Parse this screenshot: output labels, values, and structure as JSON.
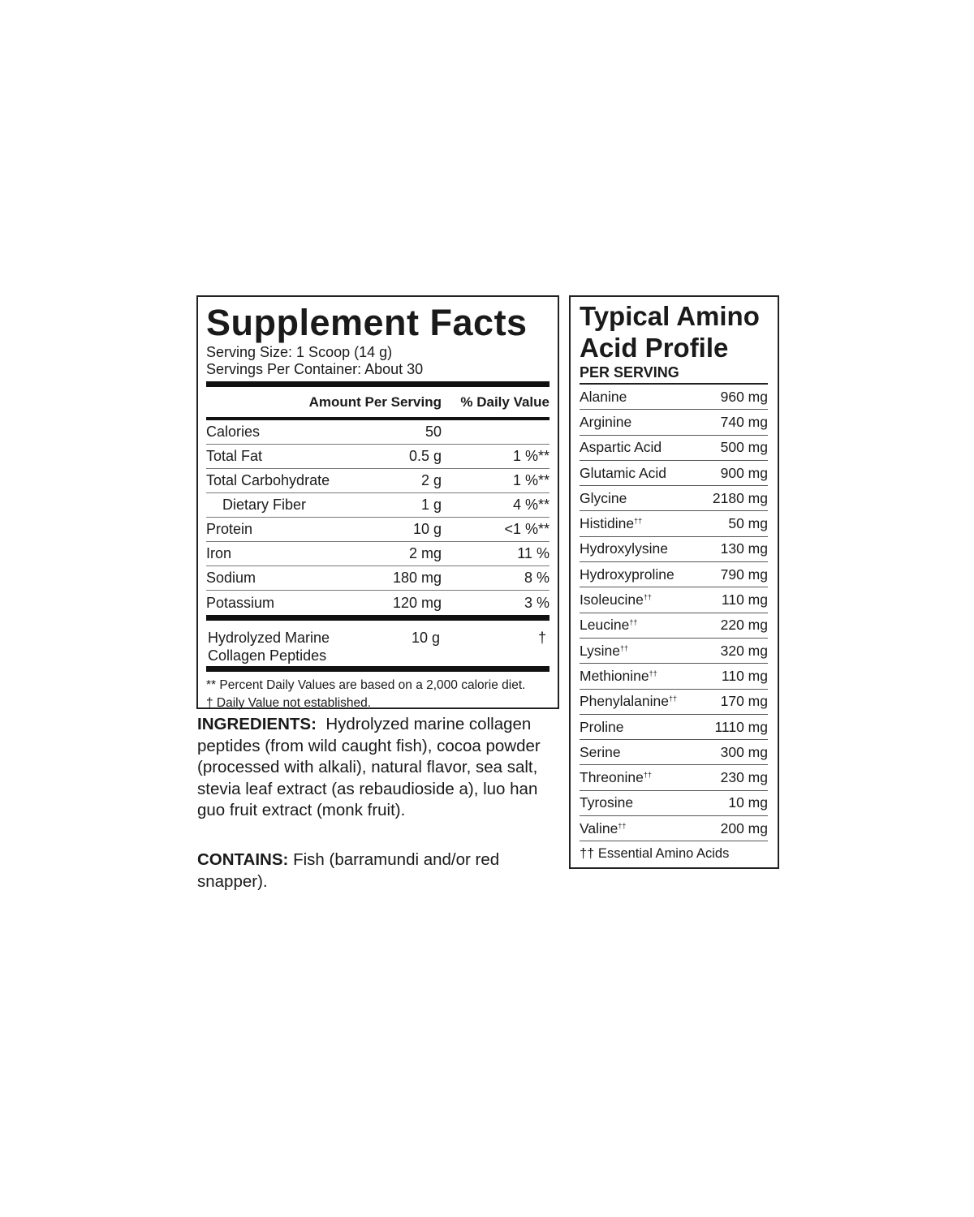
{
  "supplement_facts": {
    "title": "Supplement Facts",
    "serving_size": "Serving Size: 1 Scoop (14 g)",
    "servings_per_container": "Servings Per Container: About 30",
    "header_amount": "Amount Per Serving",
    "header_dv": "% Daily Value",
    "rows": [
      {
        "name": "Calories",
        "amount": "50",
        "dv": ""
      },
      {
        "name": "Total Fat",
        "amount": "0.5 g",
        "dv": "1 %**"
      },
      {
        "name": "Total Carbohydrate",
        "amount": "2 g",
        "dv": "1 %**"
      },
      {
        "name": "Dietary Fiber",
        "amount": "1 g",
        "dv": "4 %**"
      },
      {
        "name": "Protein",
        "amount": "10 g",
        "dv": "<1 %**"
      },
      {
        "name": "Iron",
        "amount": "2 mg",
        "dv": "11 %"
      },
      {
        "name": "Sodium",
        "amount": "180 mg",
        "dv": "8 %"
      },
      {
        "name": "Potassium",
        "amount": "120 mg",
        "dv": "3 %"
      }
    ],
    "collagen": {
      "name_line1": "Hydrolyzed Marine",
      "name_line2": "Collagen Peptides",
      "amount": "10 g",
      "dv": "†"
    },
    "footnote1": "** Percent Daily Values are based on a 2,000 calorie diet.",
    "footnote2": "† Daily Value not established."
  },
  "ingredients": {
    "label": "INGREDIENTS:",
    "text": "Hydrolyzed marine collagen peptides (from wild caught fish), cocoa powder (processed with alkali), natural flavor, sea salt, stevia leaf extract (as rebaudioside a), luo han guo fruit extract (monk fruit)."
  },
  "contains": {
    "label": "CONTAINS:",
    "text": "Fish (barramundi and/or red snapper)."
  },
  "amino_profile": {
    "title_line1": "Typical Amino",
    "title_line2": "Acid Profile",
    "subtitle": "PER SERVING",
    "essential_mark": "††",
    "rows": [
      {
        "name": "Alanine",
        "amount": "960 mg",
        "essential": false
      },
      {
        "name": "Arginine",
        "amount": "740 mg",
        "essential": false
      },
      {
        "name": "Aspartic Acid",
        "amount": "500 mg",
        "essential": false
      },
      {
        "name": "Glutamic Acid",
        "amount": "900 mg",
        "essential": false
      },
      {
        "name": "Glycine",
        "amount": "2180 mg",
        "essential": false
      },
      {
        "name": "Histidine",
        "amount": "50 mg",
        "essential": true
      },
      {
        "name": "Hydroxylysine",
        "amount": "130 mg",
        "essential": false
      },
      {
        "name": "Hydroxyproline",
        "amount": "790 mg",
        "essential": false
      },
      {
        "name": "Isoleucine",
        "amount": "110 mg",
        "essential": true
      },
      {
        "name": "Leucine",
        "amount": "220 mg",
        "essential": true
      },
      {
        "name": "Lysine",
        "amount": "320 mg",
        "essential": true
      },
      {
        "name": "Methionine",
        "amount": "110 mg",
        "essential": true
      },
      {
        "name": "Phenylalanine",
        "amount": "170 mg",
        "essential": true
      },
      {
        "name": "Proline",
        "amount": "1110 mg",
        "essential": false
      },
      {
        "name": "Serine",
        "amount": "300 mg",
        "essential": false
      },
      {
        "name": "Threonine",
        "amount": "230 mg",
        "essential": true
      },
      {
        "name": "Tyrosine",
        "amount": "10 mg",
        "essential": false
      },
      {
        "name": "Valine",
        "amount": "200 mg",
        "essential": true
      }
    ],
    "footnote": "†† Essential Amino Acids"
  }
}
